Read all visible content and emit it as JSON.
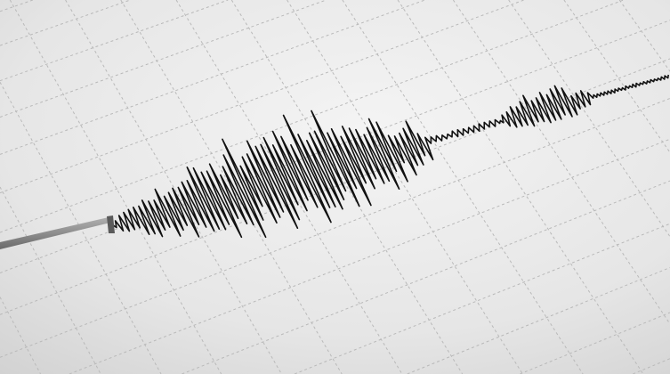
{
  "scene": {
    "subject": "seismograph-trace",
    "colors": {
      "paper": "#ececec",
      "paper_shadow": "#d4d4d4",
      "grid": "#b9b9b9",
      "trace": "#111111",
      "needle": "#8a8a8a"
    }
  }
}
